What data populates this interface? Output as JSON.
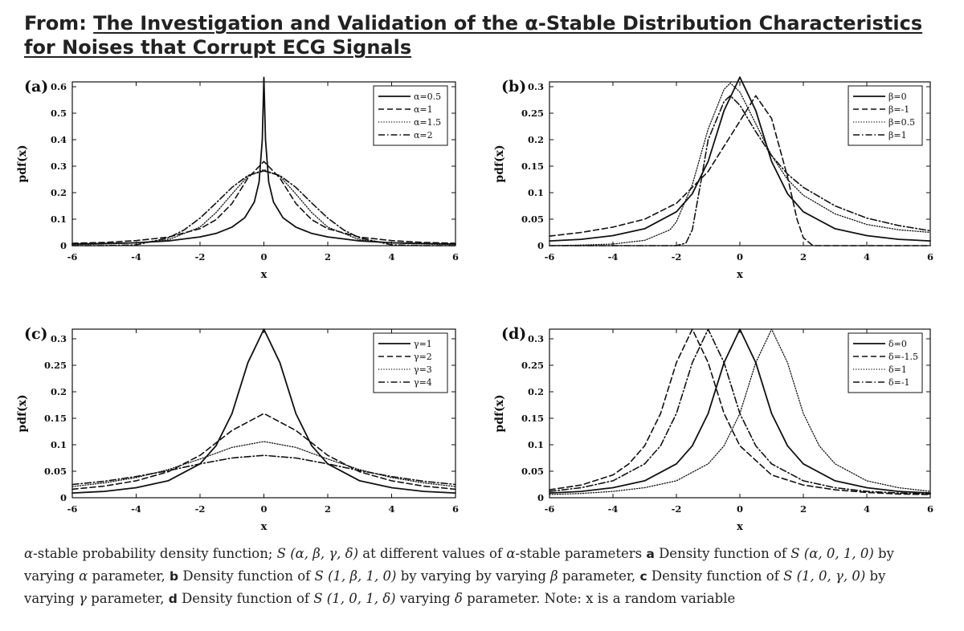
{
  "header": {
    "prefix": "From: ",
    "title": "The Investigation and Validation of the α-Stable Distribution Characteristics for Noises that Corrupt ECG Signals"
  },
  "caption": {
    "parts": [
      {
        "text": "α",
        "style": "math"
      },
      {
        "text": "-stable probability density function; ",
        "style": "normal"
      },
      {
        "text": "S (α, β, γ, δ)",
        "style": "math"
      },
      {
        "text": " at different values of ",
        "style": "normal"
      },
      {
        "text": "α",
        "style": "math"
      },
      {
        "text": "-stable parameters ",
        "style": "normal"
      },
      {
        "text": "a",
        "style": "bold"
      },
      {
        "text": " Density function of ",
        "style": "normal"
      },
      {
        "text": "S (α, 0, 1, 0)",
        "style": "math"
      },
      {
        "text": " by varying ",
        "style": "normal"
      },
      {
        "text": "α",
        "style": "math"
      },
      {
        "text": " parameter, ",
        "style": "normal"
      },
      {
        "text": "b",
        "style": "bold"
      },
      {
        "text": " Density function of ",
        "style": "normal"
      },
      {
        "text": "S (1, β, 1, 0)",
        "style": "math"
      },
      {
        "text": " by varying by varying ",
        "style": "normal"
      },
      {
        "text": "β",
        "style": "math"
      },
      {
        "text": " parameter, ",
        "style": "normal"
      },
      {
        "text": "c",
        "style": "bold"
      },
      {
        "text": " Density function of ",
        "style": "normal"
      },
      {
        "text": "S (1, 0, γ, 0)",
        "style": "math"
      },
      {
        "text": " by varying ",
        "style": "normal"
      },
      {
        "text": "γ",
        "style": "math"
      },
      {
        "text": " parameter, ",
        "style": "normal"
      },
      {
        "text": "d",
        "style": "bold"
      },
      {
        "text": " Density function of ",
        "style": "normal"
      },
      {
        "text": "S (1, 0, 1, δ)",
        "style": "math"
      },
      {
        "text": " varying ",
        "style": "normal"
      },
      {
        "text": "δ",
        "style": "math"
      },
      {
        "text": " parameter. Note: x is a random variable",
        "style": "normal"
      }
    ]
  },
  "chart_data": [
    {
      "panel": "(a)",
      "type": "line",
      "xlabel": "x",
      "ylabel": "pdf(x)",
      "xlim": [
        -6,
        6
      ],
      "ylim": [
        0,
        0.65
      ],
      "xticks": [
        -6,
        -4,
        -2,
        0,
        2,
        4,
        6
      ],
      "xtick_labels": [
        "-6",
        "-4",
        "-2",
        "0",
        "2",
        "4",
        "6"
      ],
      "yticks": [
        0,
        0.1,
        0.2,
        0.3,
        0.4,
        0.5,
        0.6
      ],
      "ytick_labels": [
        "0",
        "0.1",
        "0.2",
        "0.3",
        "0.4",
        "0.5",
        "0.6"
      ],
      "legend_position": "top-right",
      "series": [
        {
          "name": "α=0.5",
          "dash": "solid",
          "x": [
            -6,
            -5,
            -4,
            -3,
            -2,
            -1.5,
            -1,
            -0.6,
            -0.3,
            -0.15,
            -0.05,
            0,
            0.05,
            0.15,
            0.3,
            0.6,
            1,
            1.5,
            2,
            3,
            4,
            5,
            6
          ],
          "y": [
            0.006,
            0.008,
            0.011,
            0.018,
            0.033,
            0.046,
            0.07,
            0.105,
            0.165,
            0.24,
            0.4,
            0.635,
            0.4,
            0.24,
            0.165,
            0.105,
            0.07,
            0.046,
            0.033,
            0.018,
            0.011,
            0.008,
            0.006
          ]
        },
        {
          "name": "α=1",
          "dash": "dashed",
          "x": [
            -6,
            -5,
            -4,
            -3,
            -2,
            -1.5,
            -1,
            -0.5,
            0,
            0.5,
            1,
            1.5,
            2,
            3,
            4,
            5,
            6
          ],
          "y": [
            0.009,
            0.012,
            0.019,
            0.032,
            0.064,
            0.098,
            0.159,
            0.255,
            0.318,
            0.255,
            0.159,
            0.098,
            0.064,
            0.032,
            0.019,
            0.012,
            0.009
          ]
        },
        {
          "name": "α=1.5",
          "dash": "dotted",
          "x": [
            -6,
            -5,
            -4,
            -3,
            -2,
            -1.5,
            -1,
            -0.5,
            0,
            0.5,
            1,
            1.5,
            2,
            3,
            4,
            5,
            6
          ],
          "y": [
            0.004,
            0.006,
            0.01,
            0.022,
            0.07,
            0.125,
            0.195,
            0.262,
            0.287,
            0.262,
            0.195,
            0.125,
            0.07,
            0.022,
            0.01,
            0.006,
            0.004
          ]
        },
        {
          "name": "α=2",
          "dash": "dashdot",
          "x": [
            -6,
            -5,
            -4,
            -3,
            -2.5,
            -2,
            -1.5,
            -1,
            -0.5,
            0,
            0.5,
            1,
            1.5,
            2,
            2.5,
            3,
            4,
            5,
            6
          ],
          "y": [
            0.0,
            0.0,
            0.003,
            0.029,
            0.059,
            0.104,
            0.161,
            0.22,
            0.265,
            0.282,
            0.265,
            0.22,
            0.161,
            0.104,
            0.059,
            0.029,
            0.003,
            0.0,
            0.0
          ]
        }
      ]
    },
    {
      "panel": "(b)",
      "type": "line",
      "xlabel": "x",
      "ylabel": "pdf(x)",
      "xlim": [
        -6,
        6
      ],
      "ylim": [
        0,
        0.32
      ],
      "xticks": [
        -6,
        -4,
        -2,
        0,
        2,
        4,
        6
      ],
      "xtick_labels": [
        "-6",
        "-4",
        "-2",
        "0",
        "2",
        "4",
        "6"
      ],
      "yticks": [
        0,
        0.05,
        0.1,
        0.15,
        0.2,
        0.25,
        0.3
      ],
      "ytick_labels": [
        "0",
        "0.05",
        "0.1",
        "0.15",
        "0.2",
        "0.25",
        "0.3"
      ],
      "legend_position": "top-right",
      "series": [
        {
          "name": "β=0",
          "dash": "solid",
          "x": [
            -6,
            -5,
            -4,
            -3,
            -2,
            -1.5,
            -1,
            -0.5,
            0,
            0.5,
            1,
            1.5,
            2,
            3,
            4,
            5,
            6
          ],
          "y": [
            0.009,
            0.012,
            0.019,
            0.032,
            0.064,
            0.098,
            0.159,
            0.255,
            0.318,
            0.255,
            0.159,
            0.098,
            0.064,
            0.032,
            0.019,
            0.012,
            0.009
          ]
        },
        {
          "name": "β=-1",
          "dash": "dashed",
          "x": [
            -6,
            -5,
            -4,
            -3,
            -2,
            -1,
            0,
            0.5,
            1,
            1.5,
            1.8,
            2,
            2.3,
            3,
            4,
            5,
            6
          ],
          "y": [
            0.018,
            0.025,
            0.035,
            0.05,
            0.08,
            0.14,
            0.235,
            0.283,
            0.24,
            0.13,
            0.05,
            0.015,
            0.0,
            0.0,
            0.0,
            0.0,
            0.0
          ]
        },
        {
          "name": "β=0.5",
          "dash": "dotted",
          "x": [
            -6,
            -5,
            -4,
            -3,
            -2.2,
            -2,
            -1.5,
            -1,
            -0.5,
            -0.3,
            0,
            0.5,
            1,
            1.5,
            2,
            3,
            4,
            5,
            6
          ],
          "y": [
            0.0,
            0.001,
            0.003,
            0.01,
            0.03,
            0.045,
            0.115,
            0.22,
            0.295,
            0.307,
            0.29,
            0.23,
            0.17,
            0.125,
            0.095,
            0.06,
            0.04,
            0.03,
            0.025
          ]
        },
        {
          "name": "β=1",
          "dash": "dashdot",
          "x": [
            -6,
            -5,
            -4,
            -3,
            -2.2,
            -2,
            -1.7,
            -1.5,
            -1.2,
            -1,
            -0.5,
            -0.3,
            0,
            0.5,
            1,
            1.5,
            2,
            3,
            4,
            5,
            6
          ],
          "y": [
            0.0,
            0.0,
            0.0,
            0.0,
            0.0,
            0.0,
            0.005,
            0.03,
            0.13,
            0.2,
            0.272,
            0.283,
            0.265,
            0.215,
            0.17,
            0.135,
            0.11,
            0.075,
            0.052,
            0.038,
            0.028
          ]
        }
      ]
    },
    {
      "panel": "(c)",
      "type": "line",
      "xlabel": "x",
      "ylabel": "pdf(x)",
      "xlim": [
        -6,
        6
      ],
      "ylim": [
        0,
        0.32
      ],
      "xticks": [
        -6,
        -4,
        -2,
        0,
        2,
        4,
        6
      ],
      "xtick_labels": [
        "-6",
        "-4",
        "-2",
        "0",
        "2",
        "4",
        "6"
      ],
      "yticks": [
        0,
        0.05,
        0.1,
        0.15,
        0.2,
        0.25,
        0.3
      ],
      "ytick_labels": [
        "0",
        "0.05",
        "0.1",
        "0.15",
        "0.2",
        "0.25",
        "0.3"
      ],
      "legend_position": "top-right",
      "series": [
        {
          "name": "γ=1",
          "dash": "solid",
          "x": [
            -6,
            -5,
            -4,
            -3,
            -2,
            -1.5,
            -1,
            -0.5,
            0,
            0.5,
            1,
            1.5,
            2,
            3,
            4,
            5,
            6
          ],
          "y": [
            0.009,
            0.012,
            0.019,
            0.032,
            0.064,
            0.098,
            0.159,
            0.255,
            0.318,
            0.255,
            0.159,
            0.098,
            0.064,
            0.032,
            0.019,
            0.012,
            0.009
          ]
        },
        {
          "name": "γ=2",
          "dash": "dashed",
          "x": [
            -6,
            -5,
            -4,
            -3,
            -2,
            -1,
            0,
            1,
            2,
            3,
            4,
            5,
            6
          ],
          "y": [
            0.016,
            0.022,
            0.032,
            0.049,
            0.08,
            0.127,
            0.159,
            0.127,
            0.08,
            0.049,
            0.032,
            0.022,
            0.016
          ]
        },
        {
          "name": "γ=3",
          "dash": "dotted",
          "x": [
            -6,
            -5,
            -4,
            -3,
            -2,
            -1,
            0,
            1,
            2,
            3,
            4,
            5,
            6
          ],
          "y": [
            0.021,
            0.028,
            0.038,
            0.053,
            0.073,
            0.095,
            0.106,
            0.095,
            0.073,
            0.053,
            0.038,
            0.028,
            0.021
          ]
        },
        {
          "name": "γ=4",
          "dash": "dashdot",
          "x": [
            -6,
            -5,
            -4,
            -3,
            -2,
            -1,
            0,
            1,
            2,
            3,
            4,
            5,
            6
          ],
          "y": [
            0.025,
            0.031,
            0.04,
            0.051,
            0.064,
            0.075,
            0.08,
            0.075,
            0.064,
            0.051,
            0.04,
            0.031,
            0.025
          ]
        }
      ]
    },
    {
      "panel": "(d)",
      "type": "line",
      "xlabel": "x",
      "ylabel": "pdf(x)",
      "xlim": [
        -6,
        6
      ],
      "ylim": [
        0,
        0.32
      ],
      "xticks": [
        -6,
        -4,
        -2,
        0,
        2,
        4,
        6
      ],
      "xtick_labels": [
        "-6",
        "-4",
        "-2",
        "0",
        "2",
        "4",
        "6"
      ],
      "yticks": [
        0,
        0.05,
        0.1,
        0.15,
        0.2,
        0.25,
        0.3
      ],
      "ytick_labels": [
        "0",
        "0.05",
        "0.1",
        "0.15",
        "0.2",
        "0.25",
        "0.3"
      ],
      "legend_position": "top-right",
      "series": [
        {
          "name": "δ=0",
          "dash": "solid",
          "x": [
            -6,
            -5,
            -4,
            -3,
            -2,
            -1.5,
            -1,
            -0.5,
            0,
            0.5,
            1,
            1.5,
            2,
            3,
            4,
            5,
            6
          ],
          "y": [
            0.009,
            0.012,
            0.019,
            0.032,
            0.064,
            0.098,
            0.159,
            0.255,
            0.318,
            0.255,
            0.159,
            0.098,
            0.064,
            0.032,
            0.019,
            0.012,
            0.009
          ]
        },
        {
          "name": "δ=-1.5",
          "dash": "dashed",
          "x": [
            -6,
            -5,
            -4,
            -3.5,
            -3,
            -2.5,
            -2,
            -1.5,
            -1,
            -0.5,
            0,
            1,
            2,
            3,
            4,
            5,
            6
          ],
          "y": [
            0.015,
            0.024,
            0.043,
            0.064,
            0.098,
            0.159,
            0.255,
            0.318,
            0.255,
            0.159,
            0.098,
            0.043,
            0.024,
            0.015,
            0.01,
            0.007,
            0.006
          ]
        },
        {
          "name": "δ=1",
          "dash": "dotted",
          "x": [
            -6,
            -5,
            -4,
            -3,
            -2,
            -1,
            -0.5,
            0,
            0.5,
            1,
            1.5,
            2,
            2.5,
            3,
            4,
            5,
            6
          ],
          "y": [
            0.006,
            0.008,
            0.012,
            0.019,
            0.032,
            0.064,
            0.098,
            0.159,
            0.255,
            0.318,
            0.255,
            0.159,
            0.098,
            0.064,
            0.032,
            0.019,
            0.012
          ]
        },
        {
          "name": "δ=-1",
          "dash": "dashdot",
          "x": [
            -6,
            -5,
            -4,
            -3,
            -2.5,
            -2,
            -1.5,
            -1,
            -0.5,
            0,
            0.5,
            1,
            2,
            3,
            4,
            5,
            6
          ],
          "y": [
            0.012,
            0.019,
            0.032,
            0.064,
            0.098,
            0.159,
            0.255,
            0.318,
            0.255,
            0.159,
            0.098,
            0.064,
            0.032,
            0.019,
            0.012,
            0.009,
            0.007
          ]
        }
      ]
    }
  ]
}
